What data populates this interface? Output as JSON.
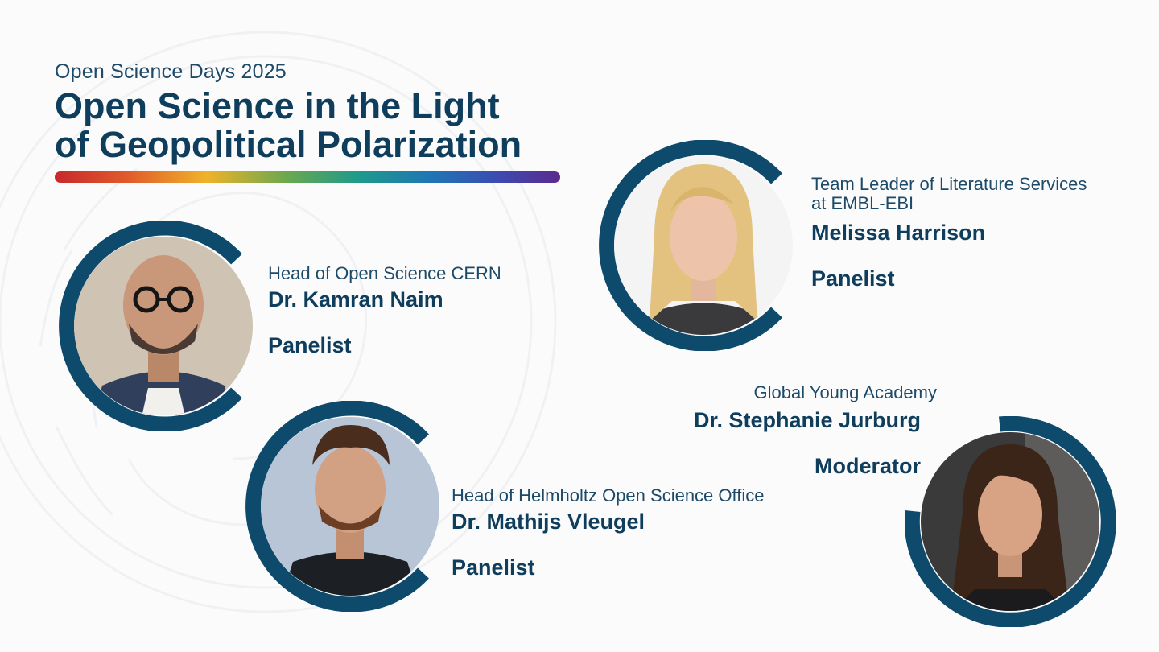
{
  "event": {
    "series": "Open Science Days 2025",
    "title_line1": "Open Science in the Light",
    "title_line2": "of Geopolitical Polarization"
  },
  "colors": {
    "navy": "#0f3d5c",
    "ring": "#0e4a6b"
  },
  "speakers": [
    {
      "role": "Head of Open Science CERN",
      "name": "Dr. Kamran Naim",
      "function": "Panelist"
    },
    {
      "role": "Head of Helmholtz Open Science Office",
      "name": "Dr. Mathijs Vleugel",
      "function": "Panelist"
    },
    {
      "role_line1": "Team Leader of Literature Services",
      "role_line2": "at EMBL-EBI",
      "name": "Melissa Harrison",
      "function": "Panelist"
    },
    {
      "role": "Global Young Academy",
      "name": "Dr. Stephanie Jurburg",
      "function": "Moderator"
    }
  ]
}
